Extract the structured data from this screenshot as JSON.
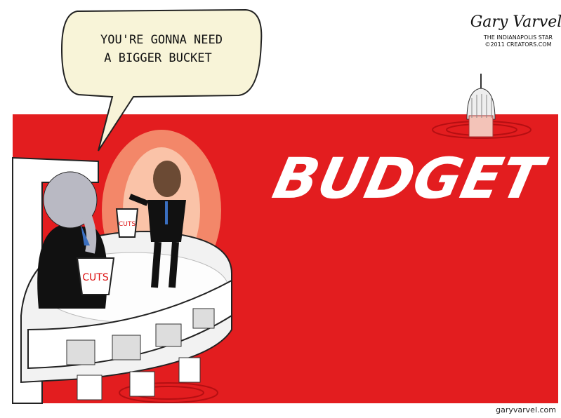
{
  "speech_bubble": {
    "lines": [
      "YOU'RE GONNA NEED",
      "A BIGGER BUCKET"
    ]
  },
  "sea_text": "BUDGET",
  "buckets": [
    "CUTS",
    "CUTS"
  ],
  "signature": {
    "name": "Gary Varvel",
    "lines": [
      "THE INDIANAPOLIS STAR",
      "©2011 CREATORS.COM"
    ]
  },
  "footer": "garyvarvel.com"
}
